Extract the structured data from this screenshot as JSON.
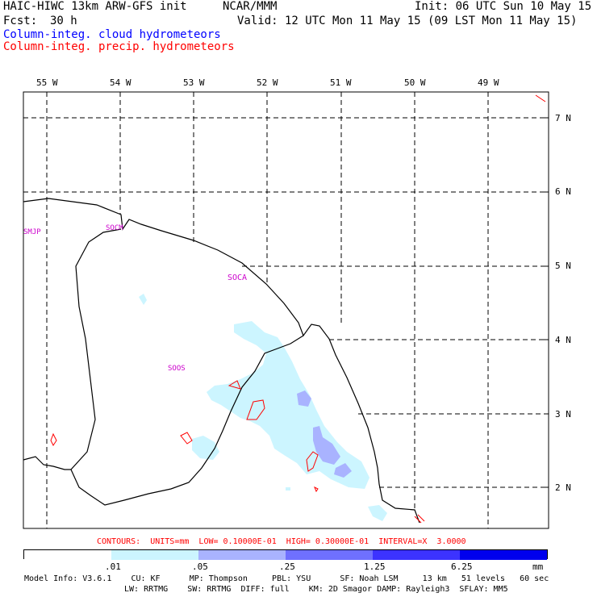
{
  "header": {
    "title_left": "HAIC-HIWC 13km ARW-GFS init",
    "org": "NCAR/MMM",
    "init": "Init: 06 UTC Sun 10 May 15",
    "fcst_label": "Fcst:",
    "fcst_value": "30 h",
    "valid": "Valid: 12 UTC Mon 11 May 15 (09 LST Mon 11 May 15)",
    "field1": "Column-integ. cloud hydrometeors",
    "field2": "Column-integ. precip. hydrometeors",
    "field1_color": "#0000ff",
    "field2_color": "#ff0000"
  },
  "map": {
    "lon_labels": [
      "55 W",
      "54 W",
      "53 W",
      "52 W",
      "51 W",
      "50 W",
      "49 W"
    ],
    "lat_labels": [
      "7 N",
      "6 N",
      "5 N",
      "4 N",
      "3 N",
      "2 N"
    ],
    "stations": [
      "SMJP",
      "SOCM",
      "SOCA",
      "SOOS"
    ],
    "station_color": "#cc00cc",
    "coast_color": "#000000",
    "grid_style": "dashed"
  },
  "contours": {
    "text": "CONTOURS:  UNITS=mm  LOW= 0.10000E-01  HIGH= 0.30000E-01  INTERVAL=X  3.0000",
    "color": "#ff0000"
  },
  "colorbar": {
    "ticks": [
      ".01",
      ".05",
      ".25",
      "1.25",
      "6.25"
    ],
    "unit": "mm",
    "colors": [
      "#ffffff",
      "#ccf5ff",
      "#a9b3ff",
      "#6f70ff",
      "#3c33ff",
      "#0000ee"
    ]
  },
  "footer": {
    "line1": "Model Info: V3.6.1    CU: KF      MP: Thompson     PBL: YSU      SF: Noah LSM     13 km   51 levels   60 sec",
    "line2": "LW: RRTMG    SW: RRTMG  DIFF: full    KM: 2D Smagor DAMP: Rayleigh3  SFLAY: MM5"
  }
}
